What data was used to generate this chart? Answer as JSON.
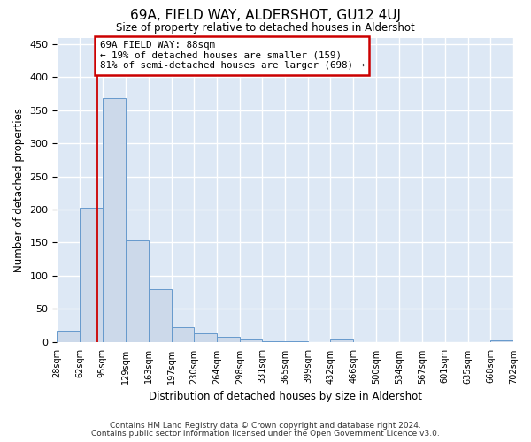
{
  "title": "69A, FIELD WAY, ALDERSHOT, GU12 4UJ",
  "subtitle": "Size of property relative to detached houses in Aldershot",
  "xlabel": "Distribution of detached houses by size in Aldershot",
  "ylabel": "Number of detached properties",
  "bar_color": "#ccd9ea",
  "bar_edge_color": "#6699cc",
  "plot_bg_color": "#dde8f5",
  "fig_bg_color": "#ffffff",
  "grid_color": "#ffffff",
  "bins": [
    "28sqm",
    "62sqm",
    "95sqm",
    "129sqm",
    "163sqm",
    "197sqm",
    "230sqm",
    "264sqm",
    "298sqm",
    "331sqm",
    "365sqm",
    "399sqm",
    "432sqm",
    "466sqm",
    "500sqm",
    "534sqm",
    "567sqm",
    "601sqm",
    "635sqm",
    "668sqm",
    "702sqm"
  ],
  "bin_edges": [
    28,
    62,
    95,
    129,
    163,
    197,
    230,
    264,
    298,
    331,
    365,
    399,
    432,
    466,
    500,
    534,
    567,
    601,
    635,
    668,
    702
  ],
  "values": [
    16,
    203,
    368,
    153,
    80,
    22,
    13,
    8,
    4,
    1,
    1,
    0,
    3,
    0,
    0,
    0,
    0,
    0,
    0,
    2
  ],
  "ylim": [
    0,
    460
  ],
  "yticks": [
    0,
    50,
    100,
    150,
    200,
    250,
    300,
    350,
    400,
    450
  ],
  "property_size": 88,
  "property_line_color": "#cc0000",
  "annotation_line1": "69A FIELD WAY: 88sqm",
  "annotation_line2": "← 19% of detached houses are smaller (159)",
  "annotation_line3": "81% of semi-detached houses are larger (698) →",
  "annotation_box_color": "#ffffff",
  "annotation_box_edge": "#cc0000",
  "footer_line1": "Contains HM Land Registry data © Crown copyright and database right 2024.",
  "footer_line2": "Contains public sector information licensed under the Open Government Licence v3.0."
}
